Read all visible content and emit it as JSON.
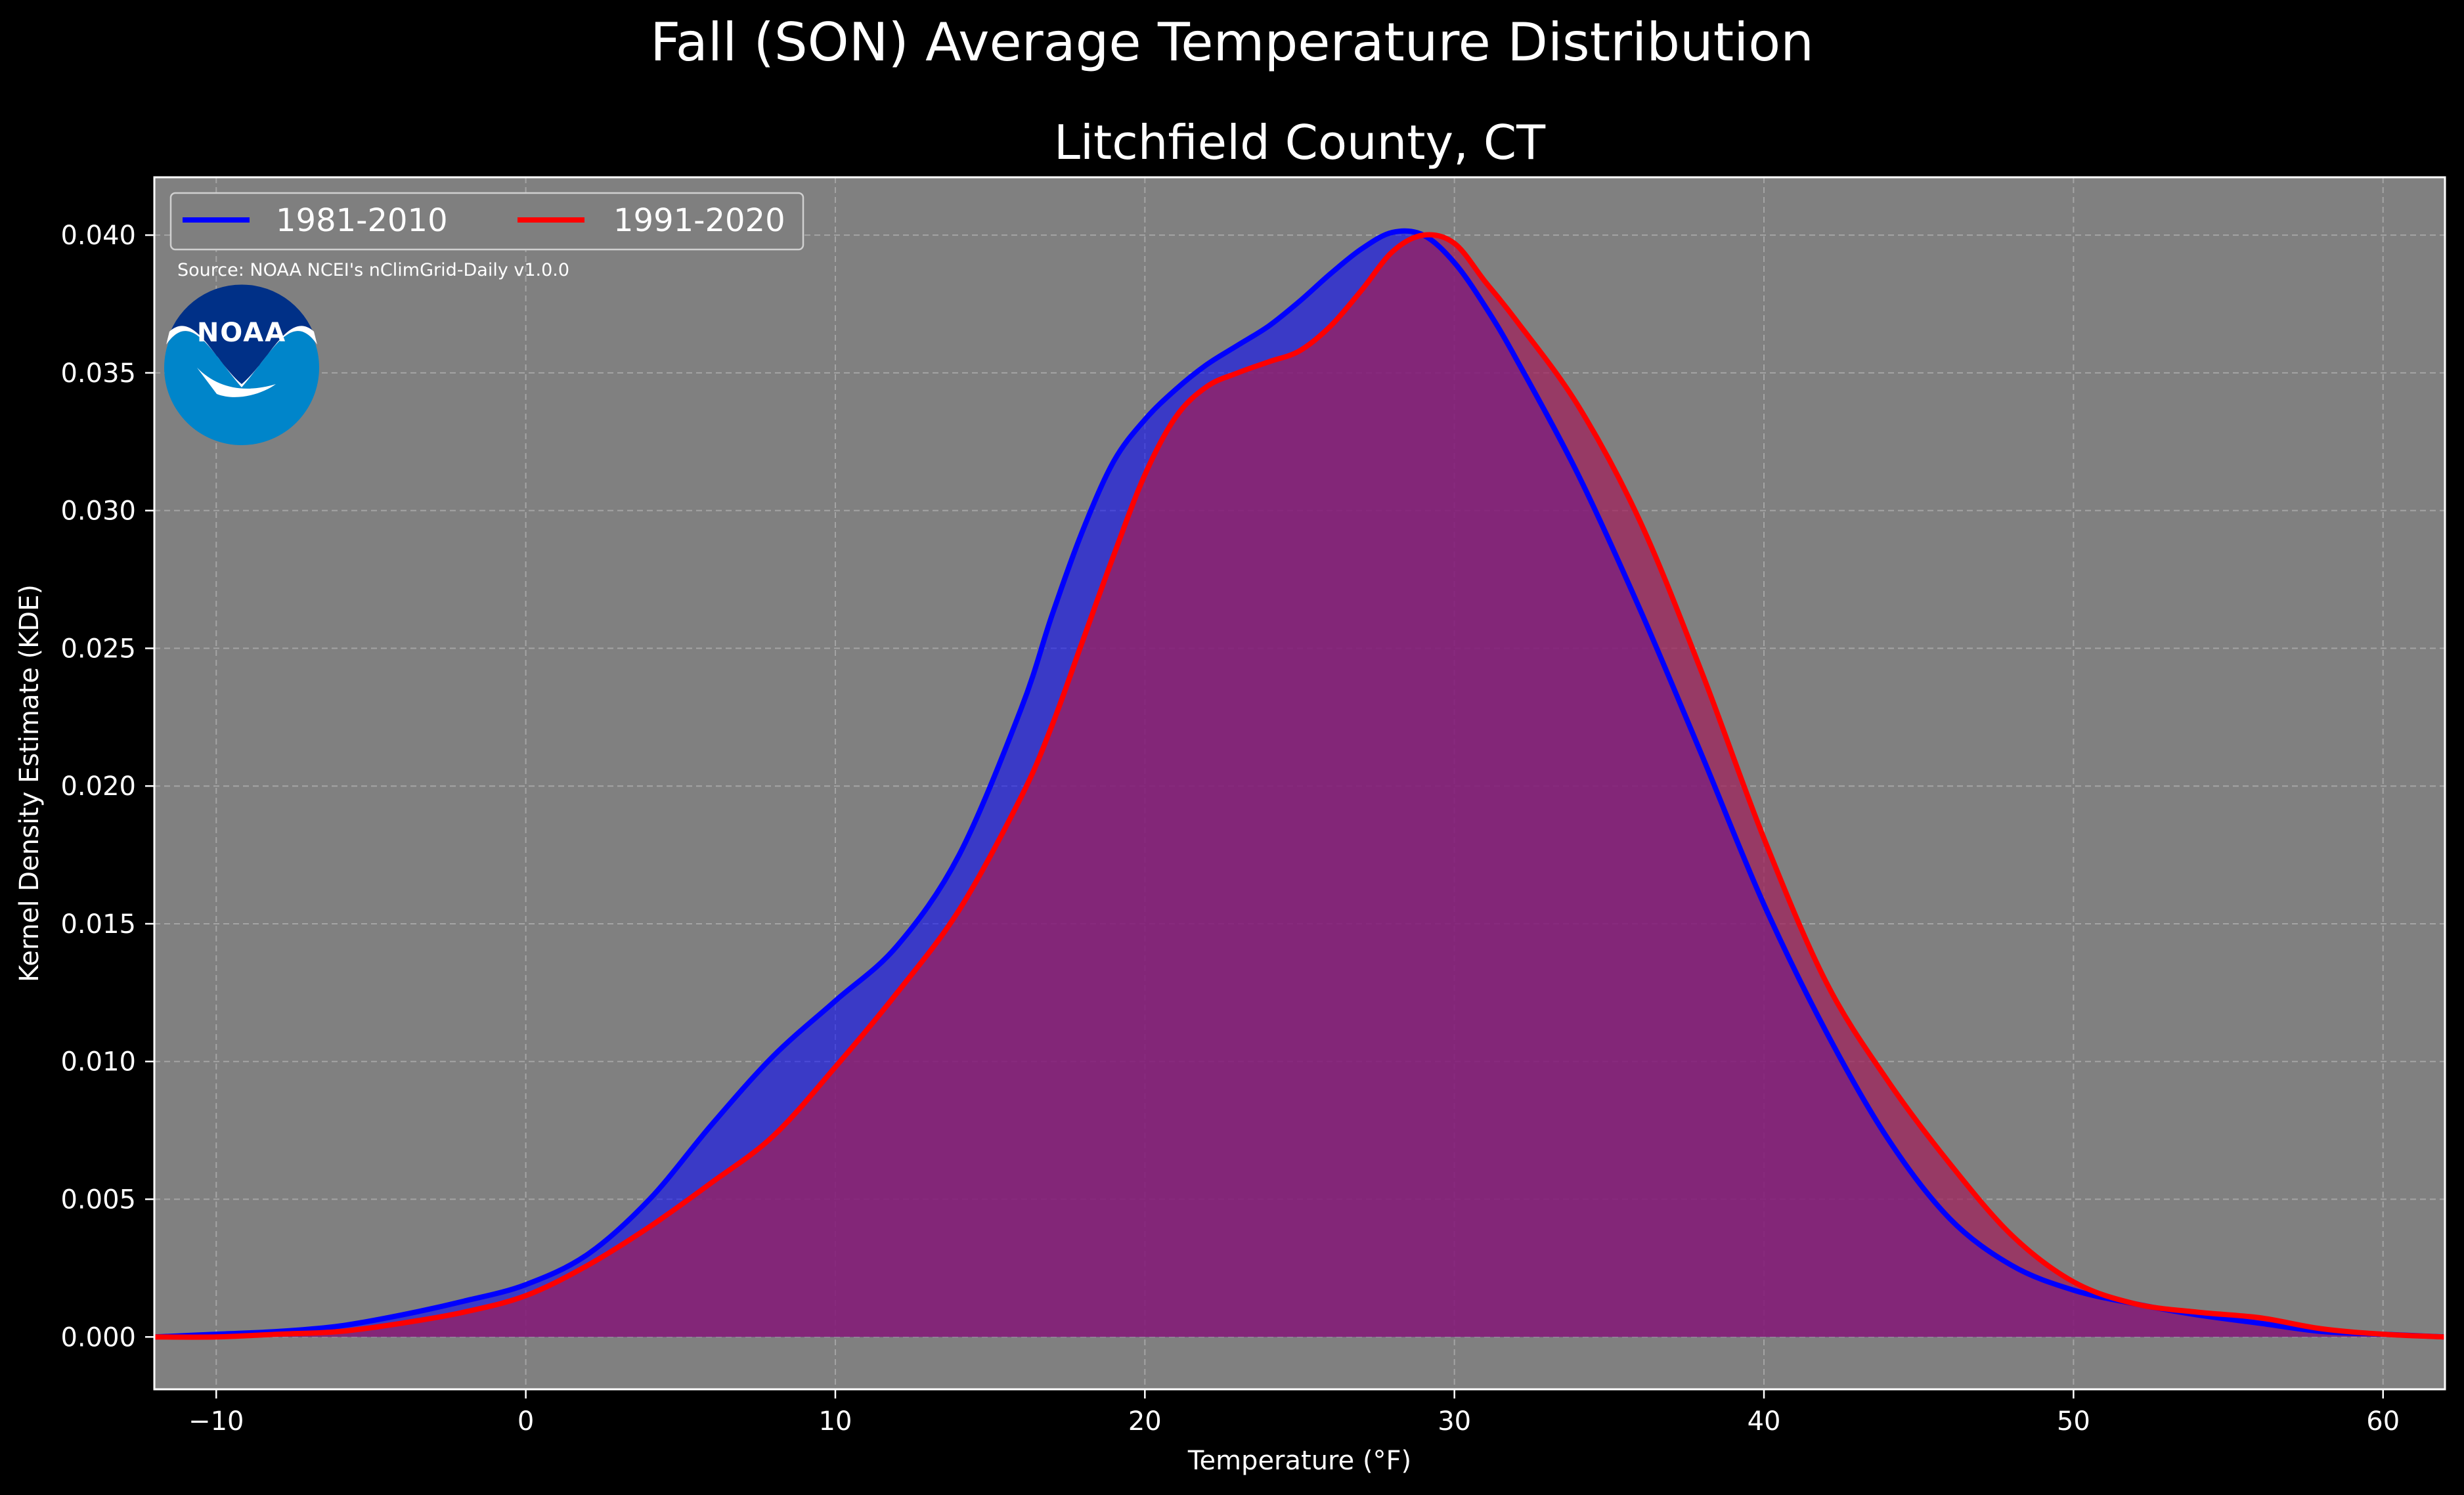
{
  "figure": {
    "title": "Fall (SON) Average Temperature Distribution",
    "background": "#000000",
    "plot_background": "#808080"
  },
  "logo": {
    "text": "NOAA",
    "outer_color": "#0085CA",
    "inner_color": "#003087"
  },
  "source_note": "Source: NOAA NCEI's nClimGrid-Daily v1.0.0",
  "chart_data": {
    "type": "area",
    "title": "Litchfield County, CT",
    "xlabel": "Temperature ($^\\circ$F)",
    "xlabel_display": "Temperature (°F)",
    "ylabel": "Kernel Density Estimate (KDE)",
    "xlim": [
      -12,
      62
    ],
    "ylim": [
      -0.0019,
      0.0421
    ],
    "xticks": [
      -10,
      0,
      10,
      20,
      30,
      40,
      50,
      60
    ],
    "xtick_labels": [
      "−10",
      "0",
      "10",
      "20",
      "30",
      "40",
      "50",
      "60"
    ],
    "yticks": [
      0.0,
      0.005,
      0.01,
      0.015,
      0.02,
      0.025,
      0.03,
      0.035,
      0.04
    ],
    "ytick_labels": [
      "0.000",
      "0.005",
      "0.010",
      "0.015",
      "0.020",
      "0.025",
      "0.030",
      "0.035",
      "0.040"
    ],
    "grid": true,
    "legend_position": "top-left",
    "series": [
      {
        "name": "1981-2010",
        "color": "#0000FF",
        "fill": "#0000FF",
        "x": [
          -12,
          -10,
          -8,
          -6,
          -4,
          -2,
          0,
          2,
          4,
          6,
          8,
          10,
          12,
          14,
          16,
          17,
          18,
          19,
          20,
          21,
          22,
          23,
          24,
          25,
          26,
          27,
          28,
          29,
          30,
          31,
          32,
          34,
          36,
          38,
          40,
          42,
          44,
          46,
          48,
          50,
          52,
          54,
          56,
          58,
          60,
          62
        ],
        "y": [
          0.0,
          0.0001,
          0.0002,
          0.0004,
          0.0008,
          0.0013,
          0.0019,
          0.003,
          0.005,
          0.0077,
          0.0102,
          0.0122,
          0.0142,
          0.0175,
          0.0228,
          0.0262,
          0.0293,
          0.0318,
          0.0333,
          0.0344,
          0.0353,
          0.036,
          0.0367,
          0.0376,
          0.0386,
          0.0395,
          0.0401,
          0.04,
          0.039,
          0.0374,
          0.0355,
          0.0313,
          0.0264,
          0.0211,
          0.0157,
          0.0111,
          0.0072,
          0.0043,
          0.0026,
          0.0017,
          0.0012,
          0.0008,
          0.0005,
          0.0002,
          0.0001,
          0.0
        ]
      },
      {
        "name": "1991-2020",
        "color": "#FF0000",
        "fill": "#A01E5A",
        "x": [
          -12,
          -10,
          -8,
          -6,
          -4,
          -2,
          0,
          2,
          4,
          6,
          8,
          10,
          12,
          14,
          16,
          17,
          18,
          19,
          20,
          21,
          22,
          23,
          24,
          25,
          26,
          27,
          28,
          29,
          30,
          31,
          32,
          34,
          36,
          38,
          40,
          42,
          44,
          46,
          48,
          50,
          52,
          54,
          56,
          58,
          60,
          62
        ],
        "y": [
          0.0,
          0.0,
          0.0001,
          0.0002,
          0.0005,
          0.0009,
          0.0015,
          0.0026,
          0.004,
          0.0056,
          0.0073,
          0.0098,
          0.0125,
          0.0155,
          0.0196,
          0.0222,
          0.0253,
          0.0284,
          0.0313,
          0.0334,
          0.0345,
          0.035,
          0.0354,
          0.0358,
          0.0367,
          0.038,
          0.0394,
          0.04,
          0.0397,
          0.0383,
          0.0369,
          0.0338,
          0.0296,
          0.0241,
          0.0181,
          0.0129,
          0.0093,
          0.0063,
          0.0037,
          0.002,
          0.0012,
          0.0009,
          0.0007,
          0.0003,
          0.0001,
          0.0
        ]
      }
    ]
  }
}
